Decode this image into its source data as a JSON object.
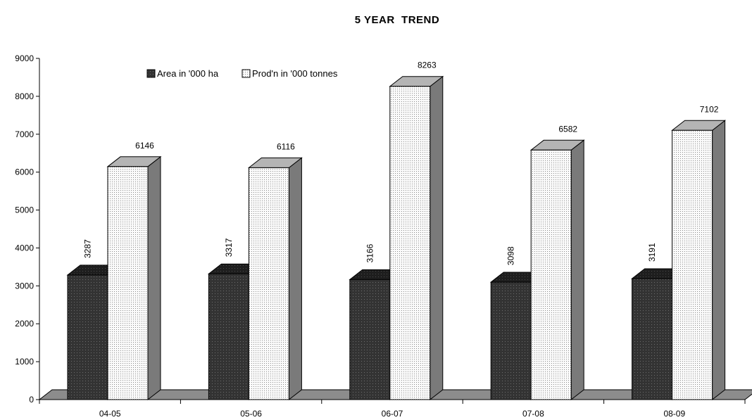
{
  "chart_data": {
    "type": "bar",
    "title": "5 YEAR  TREND",
    "categories": [
      "04-05",
      "05-06",
      "06-07",
      "07-08",
      "08-09"
    ],
    "series": [
      {
        "name": "Area in '000 ha",
        "values": [
          3287,
          3317,
          3166,
          3098,
          3191
        ],
        "color": "#3a3a3a"
      },
      {
        "name": "Prod'n in '000 tonnes",
        "values": [
          6146,
          6116,
          8263,
          6582,
          7102
        ],
        "color": "#f2f2f2"
      }
    ],
    "ylim": [
      0,
      9000
    ],
    "yticks": [
      0,
      1000,
      2000,
      3000,
      4000,
      5000,
      6000,
      7000,
      8000,
      9000
    ],
    "xlabel": "",
    "ylabel": "",
    "grid": false,
    "legend_position": "top"
  }
}
